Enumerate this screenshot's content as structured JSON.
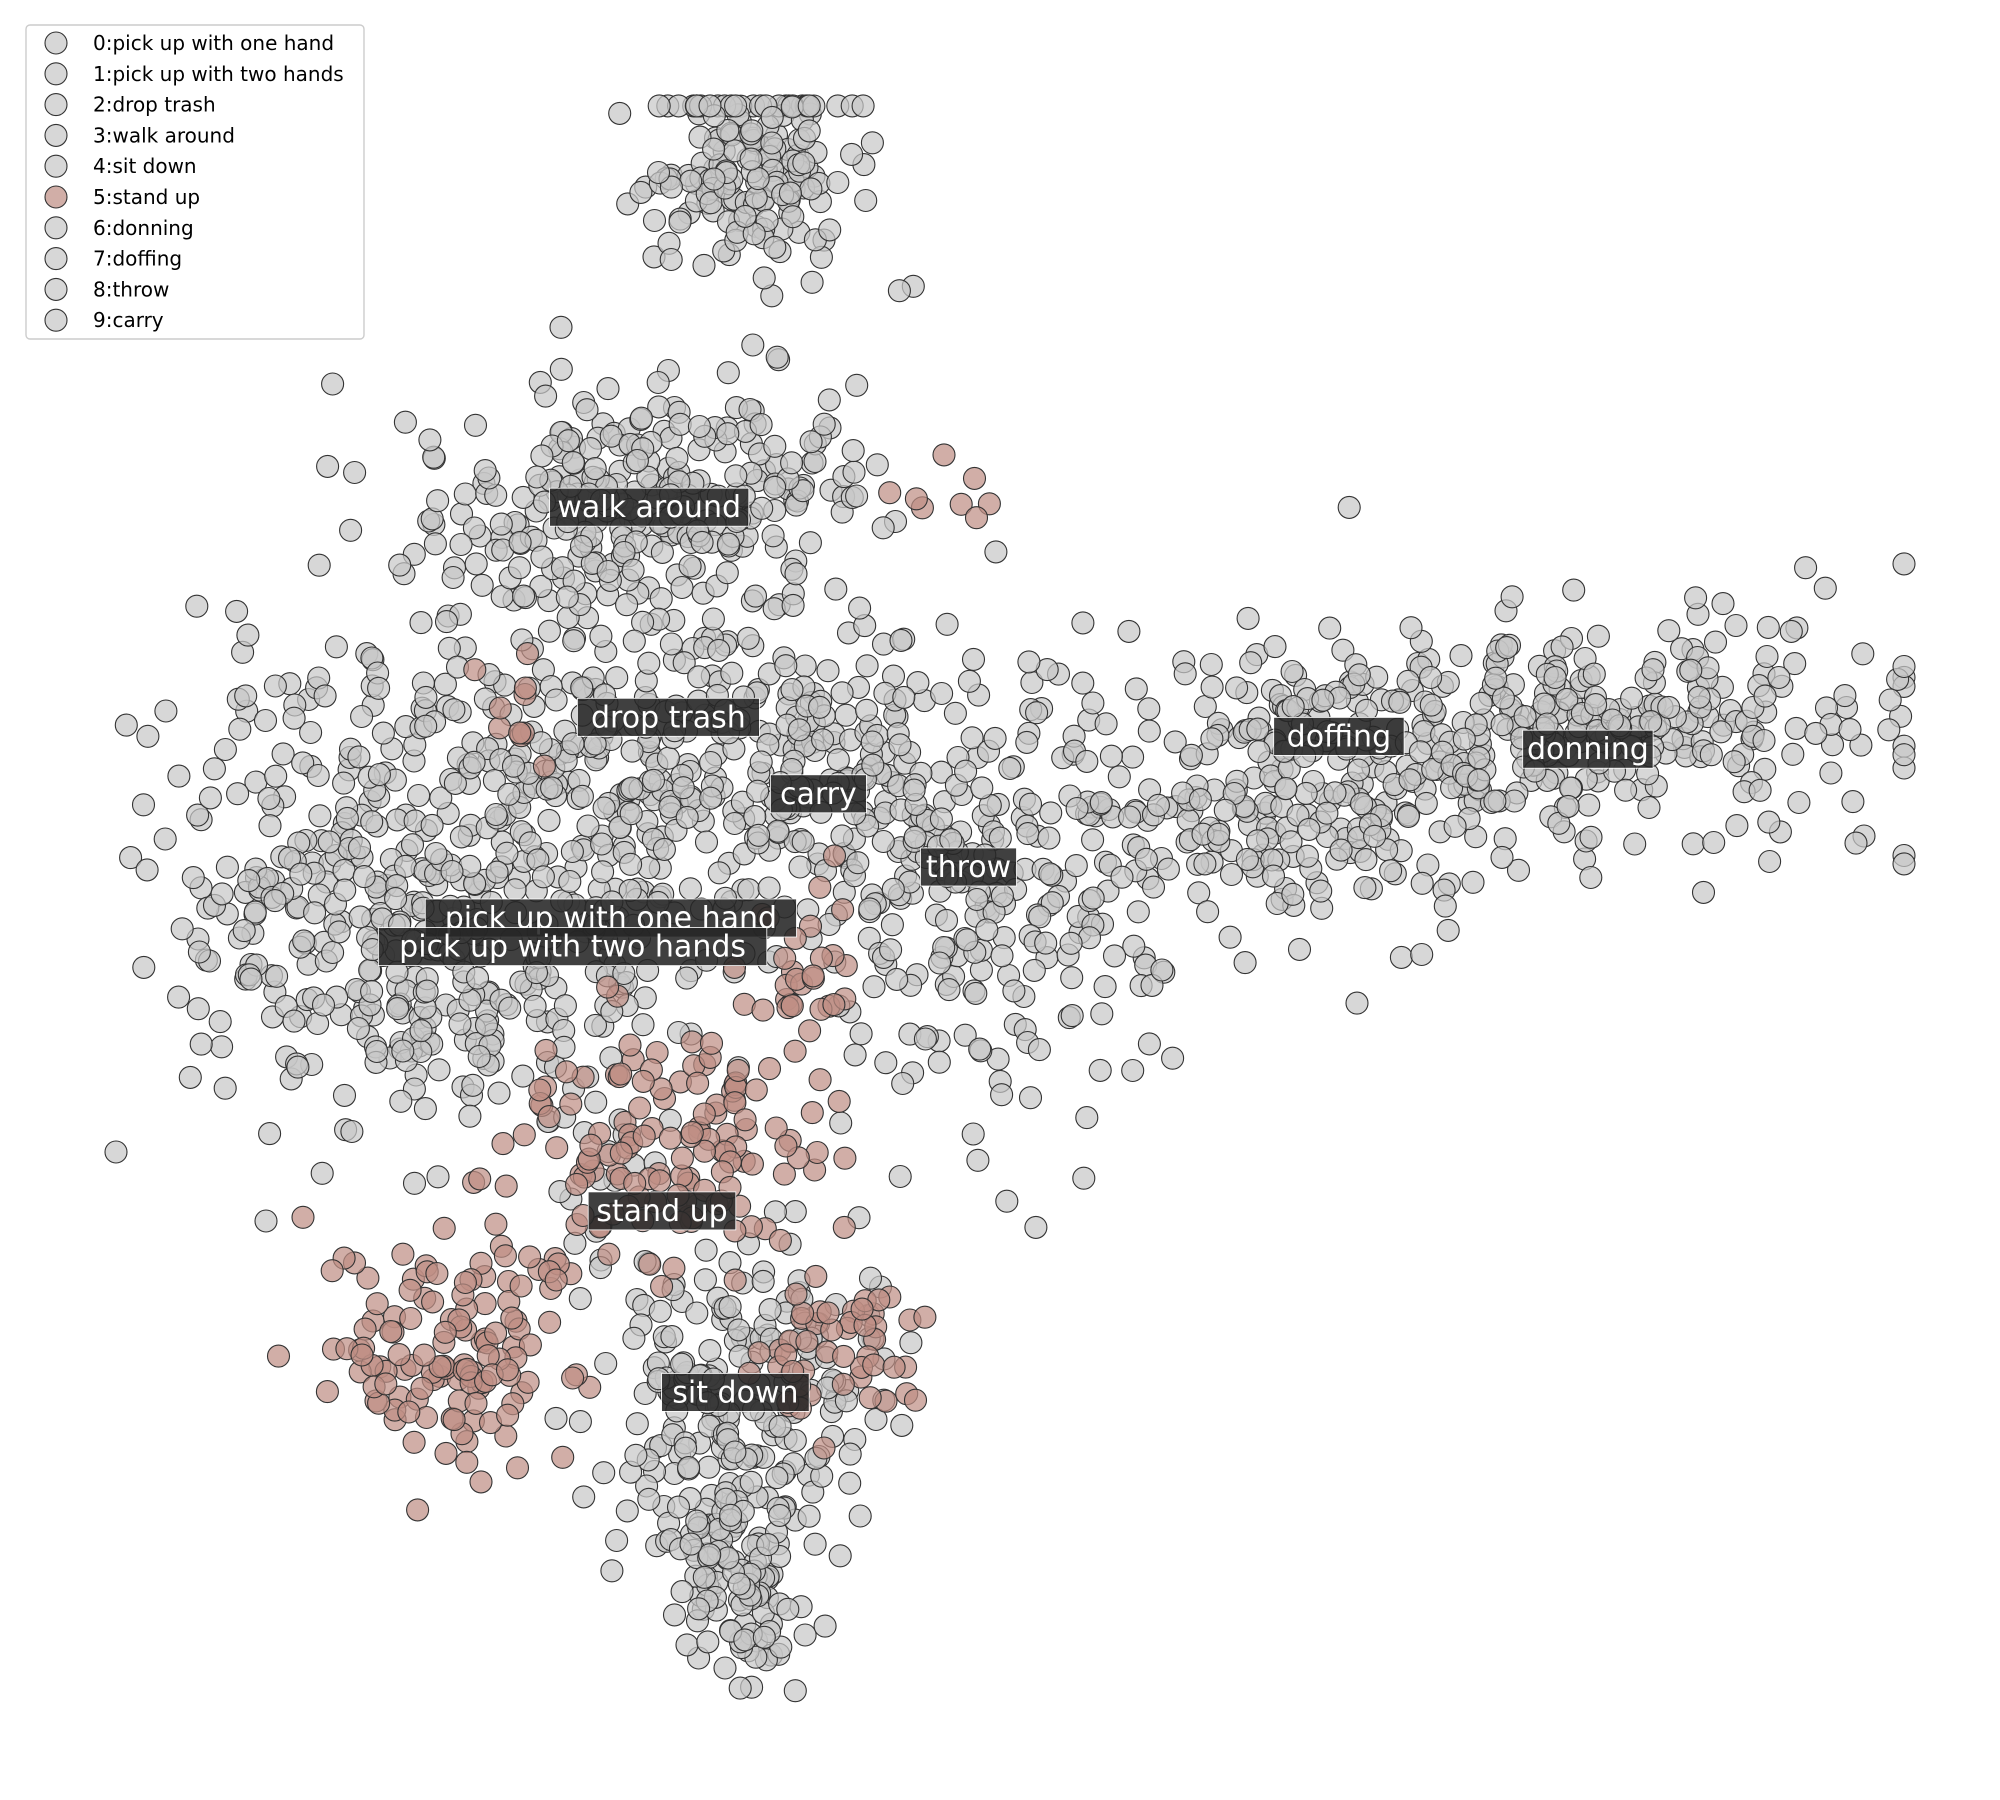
{
  "chart_data": {
    "type": "scatter",
    "title": "",
    "xlabel": "",
    "ylabel": "",
    "axes_visible": false,
    "grid": false,
    "legend_placement": "top-left",
    "highlighted_class": 5,
    "colors": {
      "default": "#c8c8c8",
      "highlight": "#bf8f85",
      "edge": "#333333",
      "label_bg": "#262626"
    },
    "classes": [
      {
        "id": 0,
        "name": "pick up with one hand",
        "legend": "0:pick up with one hand",
        "color": "#c8c8c8",
        "centroid": [
          -0.25,
          -0.35
        ]
      },
      {
        "id": 1,
        "name": "pick up with two hands",
        "legend": "1:pick up with two hands",
        "color": "#c8c8c8",
        "centroid": [
          -0.37,
          -0.44
        ]
      },
      {
        "id": 2,
        "name": "drop trash",
        "legend": "2:drop trash",
        "color": "#c8c8c8",
        "centroid": [
          -0.07,
          0.28
        ]
      },
      {
        "id": 3,
        "name": "walk around",
        "legend": "3:walk around",
        "color": "#c8c8c8",
        "centroid": [
          -0.13,
          0.94
        ]
      },
      {
        "id": 4,
        "name": "sit down",
        "legend": "4:sit down",
        "color": "#c8c8c8",
        "centroid": [
          0.14,
          -1.84
        ]
      },
      {
        "id": 5,
        "name": "stand up",
        "legend": "5:stand up",
        "color": "#bf8f85",
        "centroid": [
          -0.09,
          -1.27
        ]
      },
      {
        "id": 6,
        "name": "donning",
        "legend": "6:donning",
        "color": "#c8c8c8",
        "centroid": [
          2.81,
          0.18
        ]
      },
      {
        "id": 7,
        "name": "doffing",
        "legend": "7:doffing",
        "color": "#c8c8c8",
        "centroid": [
          2.03,
          0.22
        ]
      },
      {
        "id": 8,
        "name": "throw",
        "legend": "8:throw",
        "color": "#c8c8c8",
        "centroid": [
          0.87,
          -0.19
        ]
      },
      {
        "id": 9,
        "name": "carry",
        "legend": "9:carry",
        "color": "#c8c8c8",
        "centroid": [
          0.4,
          0.04
        ]
      }
    ],
    "x_range": [
      -1.85,
      3.85
    ],
    "y_range": [
      -2.9,
      2.25
    ],
    "regions": [
      {
        "class": 3,
        "cx": -0.1,
        "cy": 0.95,
        "sx": 0.38,
        "sy": 0.2,
        "n": 300
      },
      {
        "class": 4,
        "cx": 0.2,
        "cy": 2.0,
        "sx": 0.18,
        "sy": 0.18,
        "n": 170
      },
      {
        "class": 0,
        "cx": -1.1,
        "cy": -0.2,
        "sx": 0.32,
        "sy": 0.4,
        "n": 260
      },
      {
        "class": 1,
        "cx": -0.55,
        "cy": -0.5,
        "sx": 0.3,
        "sy": 0.28,
        "n": 200
      },
      {
        "class": 2,
        "cx": -0.25,
        "cy": 0.15,
        "sx": 0.3,
        "sy": 0.25,
        "n": 200
      },
      {
        "class": 9,
        "cx": 0.4,
        "cy": 0.1,
        "sx": 0.3,
        "sy": 0.25,
        "n": 180
      },
      {
        "class": 8,
        "cx": 0.95,
        "cy": -0.35,
        "sx": 0.32,
        "sy": 0.34,
        "n": 220
      },
      {
        "class": 7,
        "cx": 1.9,
        "cy": 0.05,
        "sx": 0.42,
        "sy": 0.24,
        "n": 280
      },
      {
        "class": 6,
        "cx": 2.9,
        "cy": 0.25,
        "sx": 0.45,
        "sy": 0.18,
        "n": 280
      },
      {
        "class": 4,
        "cx": 0.15,
        "cy": -1.85,
        "sx": 0.26,
        "sy": 0.26,
        "n": 200
      },
      {
        "class": 4,
        "cx": 0.15,
        "cy": -2.4,
        "sx": 0.12,
        "sy": 0.16,
        "n": 120
      },
      {
        "class": 5,
        "cx": -0.05,
        "cy": -1.05,
        "sx": 0.22,
        "sy": 0.18,
        "n": 130
      },
      {
        "class": 5,
        "cx": -0.75,
        "cy": -1.7,
        "sx": 0.2,
        "sy": 0.2,
        "n": 130
      },
      {
        "class": 5,
        "cx": 0.45,
        "cy": -1.7,
        "sx": 0.15,
        "sy": 0.15,
        "n": 50
      },
      {
        "class": 5,
        "cx": 0.35,
        "cy": -0.55,
        "sx": 0.12,
        "sy": 0.18,
        "n": 30
      },
      {
        "class": 5,
        "cx": -0.55,
        "cy": 0.3,
        "sx": 0.07,
        "sy": 0.07,
        "n": 10
      },
      {
        "class": 5,
        "cx": 0.85,
        "cy": 1.0,
        "sx": 0.1,
        "sy": 0.08,
        "n": 8
      }
    ]
  }
}
